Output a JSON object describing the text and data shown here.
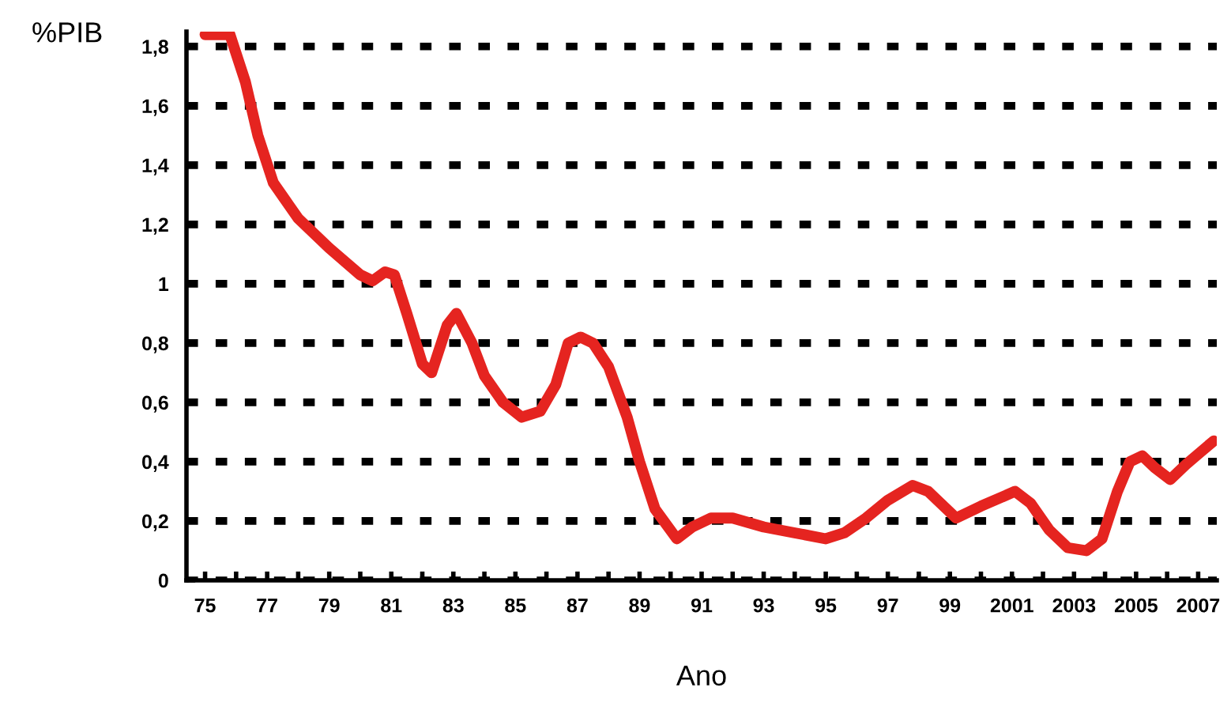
{
  "chart_data": {
    "type": "line",
    "ylabel": "%PIB",
    "xlabel": "Ano",
    "series": [
      {
        "color": "#e52420",
        "x": [
          1975,
          1975.8,
          1976.3,
          1976.7,
          1977.2,
          1977.6,
          1978,
          1979,
          1980,
          1980.4,
          1980.8,
          1981.1,
          1981.5,
          1982,
          1982.3,
          1982.8,
          1983.1,
          1983.6,
          1984,
          1984.6,
          1985.2,
          1985.8,
          1986.3,
          1986.7,
          1987.1,
          1987.5,
          1988,
          1988.6,
          1989,
          1989.5,
          1990.2,
          1990.7,
          1991.3,
          1992,
          1993,
          1994,
          1995,
          1995.6,
          1996.3,
          1997,
          1997.8,
          1998.3,
          1999.2,
          2000,
          2001.1,
          2001.6,
          2002.2,
          2002.8,
          2003.4,
          2003.9,
          2004.4,
          2004.8,
          2005.2,
          2005.6,
          2006.1,
          2006.6,
          2007.5
        ],
        "values": [
          1.84,
          1.84,
          1.68,
          1.5,
          1.34,
          1.28,
          1.22,
          1.12,
          1.03,
          1.01,
          1.04,
          1.03,
          0.9,
          0.73,
          0.7,
          0.86,
          0.9,
          0.8,
          0.69,
          0.6,
          0.55,
          0.57,
          0.66,
          0.8,
          0.82,
          0.8,
          0.72,
          0.55,
          0.4,
          0.24,
          0.14,
          0.18,
          0.21,
          0.21,
          0.18,
          0.16,
          0.14,
          0.16,
          0.21,
          0.27,
          0.32,
          0.3,
          0.21,
          0.25,
          0.3,
          0.26,
          0.17,
          0.11,
          0.1,
          0.14,
          0.3,
          0.4,
          0.42,
          0.38,
          0.34,
          0.39,
          0.47
        ]
      }
    ],
    "xlim": [
      1974.4,
      2007.6
    ],
    "xticks": [
      {
        "value": 1975,
        "label": "75"
      },
      {
        "value": 1976,
        "label": null
      },
      {
        "value": 1977,
        "label": "77"
      },
      {
        "value": 1978,
        "label": null
      },
      {
        "value": 1979,
        "label": "79"
      },
      {
        "value": 1980,
        "label": null
      },
      {
        "value": 1981,
        "label": "81"
      },
      {
        "value": 1982,
        "label": null
      },
      {
        "value": 1983,
        "label": "83"
      },
      {
        "value": 1984,
        "label": null
      },
      {
        "value": 1985,
        "label": "85"
      },
      {
        "value": 1986,
        "label": null
      },
      {
        "value": 1987,
        "label": "87"
      },
      {
        "value": 1988,
        "label": null
      },
      {
        "value": 1989,
        "label": "89"
      },
      {
        "value": 1990,
        "label": null
      },
      {
        "value": 1991,
        "label": "91"
      },
      {
        "value": 1992,
        "label": null
      },
      {
        "value": 1993,
        "label": "93"
      },
      {
        "value": 1994,
        "label": null
      },
      {
        "value": 1995,
        "label": "95"
      },
      {
        "value": 1996,
        "label": null
      },
      {
        "value": 1997,
        "label": "97"
      },
      {
        "value": 1998,
        "label": null
      },
      {
        "value": 1999,
        "label": "99"
      },
      {
        "value": 2000,
        "label": null
      },
      {
        "value": 2001,
        "label": "2001"
      },
      {
        "value": 2002,
        "label": null
      },
      {
        "value": 2003,
        "label": "2003"
      },
      {
        "value": 2004,
        "label": null
      },
      {
        "value": 2005,
        "label": "2005"
      },
      {
        "value": 2006,
        "label": null
      },
      {
        "value": 2007,
        "label": "2007"
      }
    ],
    "ylim": [
      0,
      1.85
    ],
    "yticks": [
      0,
      {
        "value": 0.2,
        "label": "0,2"
      },
      {
        "value": 0.4,
        "label": "0,4"
      },
      {
        "value": 0.6,
        "label": "0,6"
      },
      {
        "value": 0.8,
        "label": "0,8"
      },
      1,
      {
        "value": 1.2,
        "label": "1,2"
      },
      {
        "value": 1.4,
        "label": "1,4"
      },
      {
        "value": 1.6,
        "label": "1,6"
      },
      {
        "value": 1.8,
        "label": "1,8"
      }
    ],
    "grid": "y",
    "line_style": "solid",
    "legend": false
  }
}
